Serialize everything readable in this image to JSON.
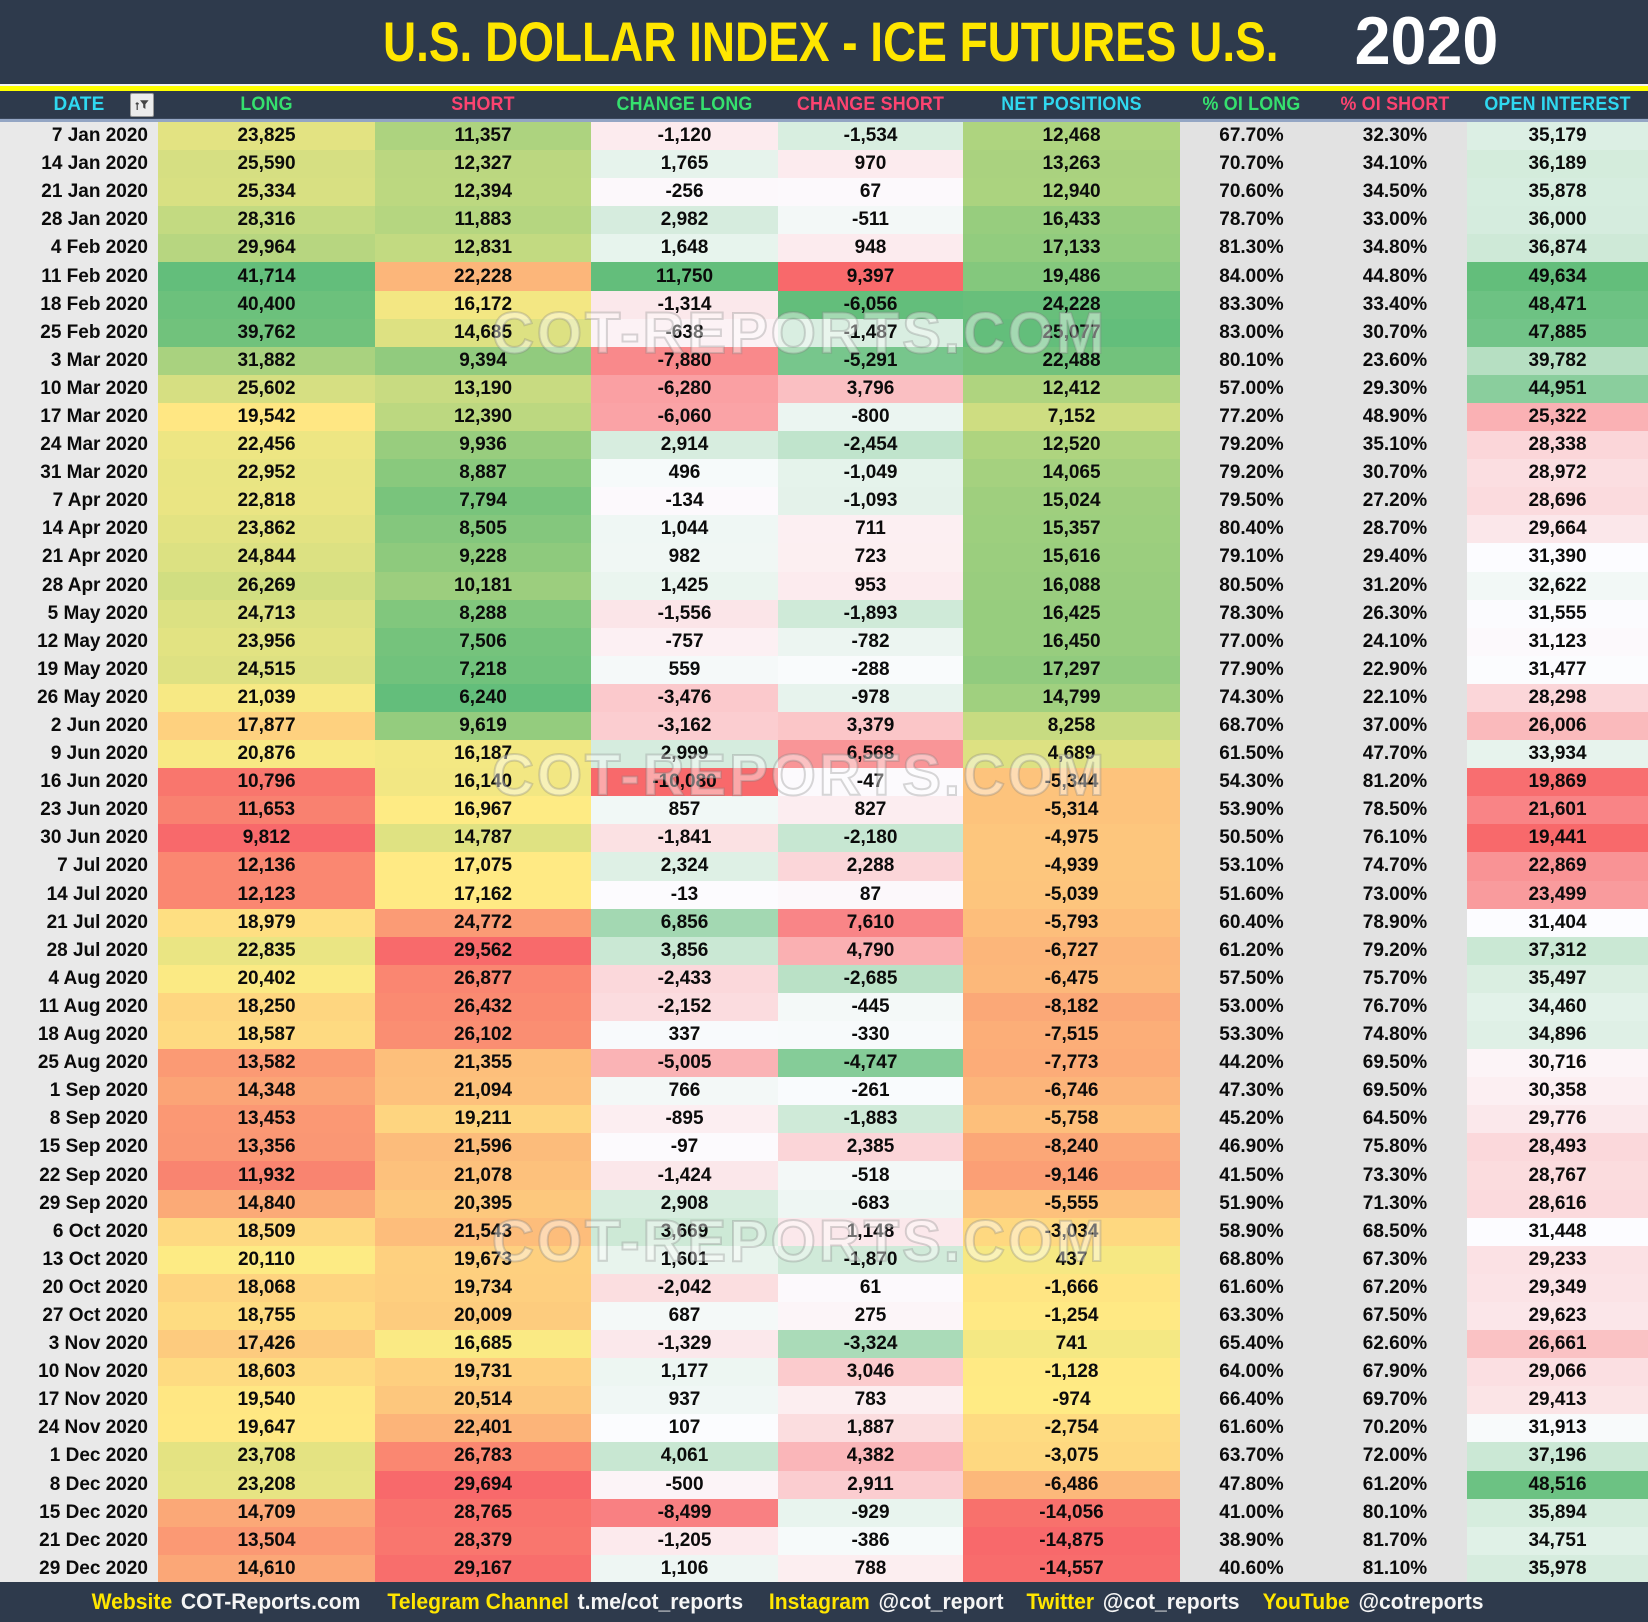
{
  "header": {
    "title": "U.S. DOLLAR INDEX - ICE FUTURES U.S.",
    "year": "2020"
  },
  "watermark": "COT-REPORTS.COM",
  "colors": {
    "navy": "#2e3a4c",
    "band_yellow": "#ffff00",
    "title_yellow": "#ffe600",
    "header_cyan": "#2fd8f0",
    "header_green": "#35e06e",
    "header_pink": "#fc4370",
    "scale_red": "#F8696B",
    "scale_yellow": "#FFEB84",
    "scale_green": "#63BE7B",
    "scale_white": "#FCFCFF",
    "date_col_bg": "#e9e9e9",
    "pct_col_bg": "#e2e2e2",
    "footer_yellow": "#ffe600"
  },
  "footer": {
    "items": [
      {
        "label": "Website",
        "value": "COT-Reports.com"
      },
      {
        "label": "Telegram Channel",
        "value": "t.me/cot_reports"
      },
      {
        "label": "Instagram",
        "value": "@cot_report"
      },
      {
        "label": "Twitter",
        "value": "@cot_reports"
      },
      {
        "label": "YouTube",
        "value": "@cotreports"
      }
    ]
  },
  "chart_data": {
    "type": "table",
    "title": "U.S. DOLLAR INDEX - ICE FUTURES U.S.",
    "year": "2020",
    "columns": [
      "DATE",
      "LONG",
      "SHORT",
      "CHANGE LONG",
      "CHANGE SHORT",
      "NET POSITIONS",
      "% OI LONG",
      "% OI SHORT",
      "OPEN INTEREST"
    ],
    "column_keys": [
      "date",
      "long",
      "short",
      "change-long",
      "change-short",
      "net-positions",
      "pct-oi-long",
      "pct-oi-short",
      "open-interest"
    ],
    "header_text_colors": [
      "header_cyan",
      "header_green",
      "header_pink",
      "header_green",
      "header_pink",
      "header_cyan",
      "header_green",
      "header_pink",
      "header_cyan"
    ],
    "scales": {
      "1": [
        "scale_red",
        "scale_yellow",
        "scale_green"
      ],
      "2": [
        "scale_green",
        "scale_yellow",
        "scale_red"
      ],
      "3": [
        "scale_red",
        "scale_white",
        "scale_green"
      ],
      "4": [
        "scale_green",
        "scale_white",
        "scale_red"
      ],
      "5": [
        "scale_red",
        "scale_yellow",
        "scale_green"
      ],
      "8": [
        "scale_red",
        "scale_white",
        "scale_green"
      ]
    },
    "rows": [
      [
        "7 Jan 2020",
        23825,
        11357,
        -1120,
        -1534,
        12468,
        "67.70%",
        "32.30%",
        35179
      ],
      [
        "14 Jan 2020",
        25590,
        12327,
        1765,
        970,
        13263,
        "70.70%",
        "34.10%",
        36189
      ],
      [
        "21 Jan 2020",
        25334,
        12394,
        -256,
        67,
        12940,
        "70.60%",
        "34.50%",
        35878
      ],
      [
        "28 Jan 2020",
        28316,
        11883,
        2982,
        -511,
        16433,
        "78.70%",
        "33.00%",
        36000
      ],
      [
        "4 Feb 2020",
        29964,
        12831,
        1648,
        948,
        17133,
        "81.30%",
        "34.80%",
        36874
      ],
      [
        "11 Feb 2020",
        41714,
        22228,
        11750,
        9397,
        19486,
        "84.00%",
        "44.80%",
        49634
      ],
      [
        "18 Feb 2020",
        40400,
        16172,
        -1314,
        -6056,
        24228,
        "83.30%",
        "33.40%",
        48471
      ],
      [
        "25 Feb 2020",
        39762,
        14685,
        -638,
        -1487,
        25077,
        "83.00%",
        "30.70%",
        47885
      ],
      [
        "3 Mar 2020",
        31882,
        9394,
        -7880,
        -5291,
        22488,
        "80.10%",
        "23.60%",
        39782
      ],
      [
        "10 Mar 2020",
        25602,
        13190,
        -6280,
        3796,
        12412,
        "57.00%",
        "29.30%",
        44951
      ],
      [
        "17 Mar 2020",
        19542,
        12390,
        -6060,
        -800,
        7152,
        "77.20%",
        "48.90%",
        25322
      ],
      [
        "24 Mar 2020",
        22456,
        9936,
        2914,
        -2454,
        12520,
        "79.20%",
        "35.10%",
        28338
      ],
      [
        "31 Mar 2020",
        22952,
        8887,
        496,
        -1049,
        14065,
        "79.20%",
        "30.70%",
        28972
      ],
      [
        "7 Apr 2020",
        22818,
        7794,
        -134,
        -1093,
        15024,
        "79.50%",
        "27.20%",
        28696
      ],
      [
        "14 Apr 2020",
        23862,
        8505,
        1044,
        711,
        15357,
        "80.40%",
        "28.70%",
        29664
      ],
      [
        "21 Apr 2020",
        24844,
        9228,
        982,
        723,
        15616,
        "79.10%",
        "29.40%",
        31390
      ],
      [
        "28 Apr 2020",
        26269,
        10181,
        1425,
        953,
        16088,
        "80.50%",
        "31.20%",
        32622
      ],
      [
        "5 May 2020",
        24713,
        8288,
        -1556,
        -1893,
        16425,
        "78.30%",
        "26.30%",
        31555
      ],
      [
        "12 May 2020",
        23956,
        7506,
        -757,
        -782,
        16450,
        "77.00%",
        "24.10%",
        31123
      ],
      [
        "19 May 2020",
        24515,
        7218,
        559,
        -288,
        17297,
        "77.90%",
        "22.90%",
        31477
      ],
      [
        "26 May 2020",
        21039,
        6240,
        -3476,
        -978,
        14799,
        "74.30%",
        "22.10%",
        28298
      ],
      [
        "2 Jun 2020",
        17877,
        9619,
        -3162,
        3379,
        8258,
        "68.70%",
        "37.00%",
        26006
      ],
      [
        "9 Jun 2020",
        20876,
        16187,
        2999,
        6568,
        4689,
        "61.50%",
        "47.70%",
        33934
      ],
      [
        "16 Jun 2020",
        10796,
        16140,
        -10080,
        -47,
        -5344,
        "54.30%",
        "81.20%",
        19869
      ],
      [
        "23 Jun 2020",
        11653,
        16967,
        857,
        827,
        -5314,
        "53.90%",
        "78.50%",
        21601
      ],
      [
        "30 Jun 2020",
        9812,
        14787,
        -1841,
        -2180,
        -4975,
        "50.50%",
        "76.10%",
        19441
      ],
      [
        "7 Jul 2020",
        12136,
        17075,
        2324,
        2288,
        -4939,
        "53.10%",
        "74.70%",
        22869
      ],
      [
        "14 Jul 2020",
        12123,
        17162,
        -13,
        87,
        -5039,
        "51.60%",
        "73.00%",
        23499
      ],
      [
        "21 Jul 2020",
        18979,
        24772,
        6856,
        7610,
        -5793,
        "60.40%",
        "78.90%",
        31404
      ],
      [
        "28 Jul 2020",
        22835,
        29562,
        3856,
        4790,
        -6727,
        "61.20%",
        "79.20%",
        37312
      ],
      [
        "4 Aug 2020",
        20402,
        26877,
        -2433,
        -2685,
        -6475,
        "57.50%",
        "75.70%",
        35497
      ],
      [
        "11 Aug 2020",
        18250,
        26432,
        -2152,
        -445,
        -8182,
        "53.00%",
        "76.70%",
        34460
      ],
      [
        "18 Aug 2020",
        18587,
        26102,
        337,
        -330,
        -7515,
        "53.30%",
        "74.80%",
        34896
      ],
      [
        "25 Aug 2020",
        13582,
        21355,
        -5005,
        -4747,
        -7773,
        "44.20%",
        "69.50%",
        30716
      ],
      [
        "1 Sep 2020",
        14348,
        21094,
        766,
        -261,
        -6746,
        "47.30%",
        "69.50%",
        30358
      ],
      [
        "8 Sep 2020",
        13453,
        19211,
        -895,
        -1883,
        -5758,
        "45.20%",
        "64.50%",
        29776
      ],
      [
        "15 Sep 2020",
        13356,
        21596,
        -97,
        2385,
        -8240,
        "46.90%",
        "75.80%",
        28493
      ],
      [
        "22 Sep 2020",
        11932,
        21078,
        -1424,
        -518,
        -9146,
        "41.50%",
        "73.30%",
        28767
      ],
      [
        "29 Sep 2020",
        14840,
        20395,
        2908,
        -683,
        -5555,
        "51.90%",
        "71.30%",
        28616
      ],
      [
        "6 Oct 2020",
        18509,
        21543,
        3669,
        1148,
        -3034,
        "58.90%",
        "68.50%",
        31448
      ],
      [
        "13 Oct 2020",
        20110,
        19673,
        1601,
        -1870,
        437,
        "68.80%",
        "67.30%",
        29233
      ],
      [
        "20 Oct 2020",
        18068,
        19734,
        -2042,
        61,
        -1666,
        "61.60%",
        "67.20%",
        29349
      ],
      [
        "27 Oct 2020",
        18755,
        20009,
        687,
        275,
        -1254,
        "63.30%",
        "67.50%",
        29623
      ],
      [
        "3 Nov 2020",
        17426,
        16685,
        -1329,
        -3324,
        741,
        "65.40%",
        "62.60%",
        26661
      ],
      [
        "10 Nov 2020",
        18603,
        19731,
        1177,
        3046,
        -1128,
        "64.00%",
        "67.90%",
        29066
      ],
      [
        "17 Nov 2020",
        19540,
        20514,
        937,
        783,
        -974,
        "66.40%",
        "69.70%",
        29413
      ],
      [
        "24 Nov 2020",
        19647,
        22401,
        107,
        1887,
        -2754,
        "61.60%",
        "70.20%",
        31913
      ],
      [
        "1 Dec 2020",
        23708,
        26783,
        4061,
        4382,
        -3075,
        "63.70%",
        "72.00%",
        37196
      ],
      [
        "8 Dec 2020",
        23208,
        29694,
        -500,
        2911,
        -6486,
        "47.80%",
        "61.20%",
        48516
      ],
      [
        "15 Dec 2020",
        14709,
        28765,
        -8499,
        -929,
        -14056,
        "41.00%",
        "80.10%",
        35894
      ],
      [
        "21 Dec 2020",
        13504,
        28379,
        -1205,
        -386,
        -14875,
        "38.90%",
        "81.70%",
        34751
      ],
      [
        "29 Dec 2020",
        14610,
        29167,
        1106,
        788,
        -14557,
        "40.60%",
        "81.10%",
        35978
      ]
    ]
  }
}
